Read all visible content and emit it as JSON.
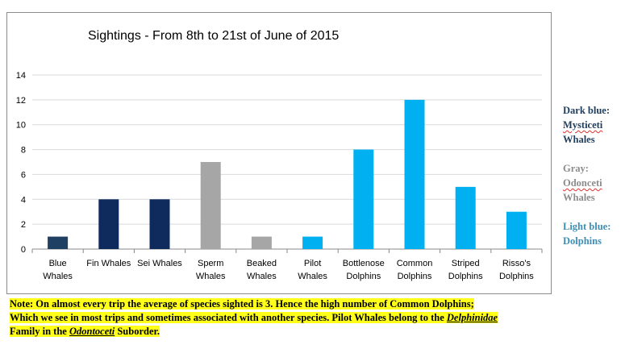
{
  "chart_data": {
    "type": "bar",
    "title": "Sightings - From 8th to 21st of June of 2015",
    "xlabel": "",
    "ylabel": "",
    "ylim": [
      0,
      14
    ],
    "yticks": [
      "0",
      "2",
      "4",
      "6",
      "8",
      "10",
      "12",
      "14"
    ],
    "grid": "horizontal",
    "legend": "none",
    "categories": [
      [
        "Blue",
        "Whales"
      ],
      [
        "Fin Whales"
      ],
      [
        "Sei Whales"
      ],
      [
        "Sperm",
        "Whales"
      ],
      [
        "Beaked",
        "Whales"
      ],
      [
        "Pilot",
        "Whales"
      ],
      [
        "Bottlenose",
        "Dolphins"
      ],
      [
        "Common",
        "Dolphins"
      ],
      [
        "Striped",
        "Dolphins"
      ],
      [
        "Risso's",
        "Dolphins"
      ]
    ],
    "values": [
      1,
      4,
      4,
      7,
      1,
      1,
      8,
      12,
      5,
      3
    ],
    "bar_colors": [
      "#1f3f63",
      "#0f2b5e",
      "#0f2b5e",
      "#a6a6a6",
      "#a6a6a6",
      "#00b0f0",
      "#00b0f0",
      "#00b0f0",
      "#00b0f0",
      "#00b0f0"
    ]
  },
  "legend_notes": {
    "dark_blue": {
      "label": "Dark blue:",
      "group": "Mysticeti",
      "animal": "Whales",
      "color": "#1f3d5c",
      "group_color": "#1f3d5c"
    },
    "gray": {
      "label": "Gray:",
      "group": "Odonceti",
      "animal": "Whales",
      "color": "#8c8c8c"
    },
    "light_blue": {
      "label": "Light blue:",
      "animal": "Dolphins",
      "color": "#3f8eb5"
    }
  },
  "note": {
    "line1": "Note: On almost every trip the average of species sighted is 3. Hence the high number of Common Dolphins;",
    "line2": "Which we see in most trips and sometimes associated with another species. Pilot Whales belong to the ",
    "line2_family": "Delphinidae",
    "line3_a": "Family in the ",
    "line3_suborder": "Odontoceti",
    "line3_b": " Suborder."
  }
}
